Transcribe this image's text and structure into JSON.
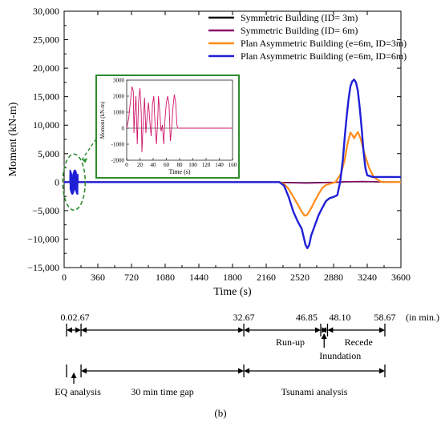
{
  "chart_data": {
    "type": "line",
    "xlabel": "Time (s)",
    "ylabel": "Moment (kN-m)",
    "xlim": [
      0,
      3600
    ],
    "ylim": [
      -15000,
      30000
    ],
    "xticks": [
      0,
      360,
      720,
      1080,
      1440,
      1800,
      2160,
      2520,
      2880,
      3240,
      3600
    ],
    "yticks": [
      -15000,
      -10000,
      -5000,
      0,
      5000,
      10000,
      15000,
      20000,
      25000,
      30000
    ],
    "ytick_labels": [
      "−15,000",
      "−10,000",
      "−5,000",
      "0",
      "5,000",
      "10,000",
      "15,000",
      "20,000",
      "25,000",
      "30,000"
    ],
    "legend_position": "top-right",
    "series": [
      {
        "name": "Symmetric Building (ID= 3m)",
        "color": "#000000",
        "points": [
          [
            0,
            0
          ],
          [
            2000,
            0
          ],
          [
            2300,
            -40
          ],
          [
            2500,
            -90
          ],
          [
            2600,
            -110
          ],
          [
            2700,
            -80
          ],
          [
            2900,
            -20
          ],
          [
            3000,
            50
          ],
          [
            3200,
            80
          ],
          [
            3400,
            30
          ],
          [
            3600,
            20
          ]
        ]
      },
      {
        "name": "Symmetric Building (ID= 6m)",
        "color": "#8b0a6b",
        "points": [
          [
            0,
            0
          ],
          [
            2000,
            0
          ],
          [
            2300,
            -60
          ],
          [
            2500,
            -150
          ],
          [
            2600,
            -180
          ],
          [
            2700,
            -120
          ],
          [
            2900,
            -40
          ],
          [
            3000,
            80
          ],
          [
            3200,
            120
          ],
          [
            3400,
            50
          ],
          [
            3600,
            30
          ]
        ]
      },
      {
        "name": "Plan Asymmetric Building (e=6m, ID=3m)",
        "color": "#ff8c1a",
        "points": [
          [
            0,
            0
          ],
          [
            2300,
            0
          ],
          [
            2350,
            -300
          ],
          [
            2400,
            -1200
          ],
          [
            2450,
            -2600
          ],
          [
            2500,
            -4000
          ],
          [
            2540,
            -5200
          ],
          [
            2570,
            -5900
          ],
          [
            2600,
            -5700
          ],
          [
            2640,
            -4600
          ],
          [
            2680,
            -3300
          ],
          [
            2720,
            -2100
          ],
          [
            2760,
            -1000
          ],
          [
            2800,
            -500
          ],
          [
            2860,
            -200
          ],
          [
            2900,
            0
          ],
          [
            2960,
            1500
          ],
          [
            3000,
            4000
          ],
          [
            3030,
            6800
          ],
          [
            3060,
            8700
          ],
          [
            3080,
            8300
          ],
          [
            3100,
            7700
          ],
          [
            3120,
            8300
          ],
          [
            3140,
            8800
          ],
          [
            3170,
            7600
          ],
          [
            3210,
            5000
          ],
          [
            3260,
            2500
          ],
          [
            3310,
            900
          ],
          [
            3360,
            300
          ],
          [
            3400,
            0
          ],
          [
            3600,
            0
          ]
        ]
      },
      {
        "name": "Plan Asymmetric Building (e=6m, ID=6m)",
        "color": "#1f1fd6",
        "points": [
          [
            0,
            0
          ],
          [
            2300,
            0
          ],
          [
            2350,
            -600
          ],
          [
            2400,
            -2600
          ],
          [
            2450,
            -5200
          ],
          [
            2500,
            -7000
          ],
          [
            2540,
            -8200
          ],
          [
            2560,
            -9600
          ],
          [
            2580,
            -11000
          ],
          [
            2600,
            -11600
          ],
          [
            2620,
            -11000
          ],
          [
            2640,
            -9400
          ],
          [
            2680,
            -7600
          ],
          [
            2720,
            -5800
          ],
          [
            2760,
            -4500
          ],
          [
            2800,
            -3300
          ],
          [
            2840,
            -2800
          ],
          [
            2880,
            -2600
          ],
          [
            2920,
            -2300
          ],
          [
            2950,
            0
          ],
          [
            2980,
            4000
          ],
          [
            3000,
            8000
          ],
          [
            3020,
            11500
          ],
          [
            3040,
            14500
          ],
          [
            3060,
            16800
          ],
          [
            3080,
            17700
          ],
          [
            3100,
            18000
          ],
          [
            3120,
            17500
          ],
          [
            3140,
            16000
          ],
          [
            3160,
            13000
          ],
          [
            3180,
            9500
          ],
          [
            3200,
            5500
          ],
          [
            3220,
            2500
          ],
          [
            3240,
            1200
          ],
          [
            3300,
            900
          ],
          [
            3600,
            900
          ]
        ]
      }
    ],
    "eq_burst": {
      "color": "#1f1fd6",
      "t_start": 60,
      "t_end": 150,
      "amplitude": 2200
    },
    "inset": {
      "xlabel": "Time (s)",
      "ylabel": "Moment (kN-m)",
      "xlim": [
        0,
        160
      ],
      "ylim": [
        -2000,
        3000
      ],
      "xticks": [
        0,
        20,
        40,
        60,
        80,
        100,
        120,
        140,
        160
      ],
      "yticks": [
        -2000,
        -1000,
        0,
        1000,
        2000,
        3000
      ],
      "series_color": "#d0156b",
      "points": [
        [
          0,
          0
        ],
        [
          3,
          600
        ],
        [
          6,
          1800
        ],
        [
          8,
          2600
        ],
        [
          10,
          2300
        ],
        [
          11,
          -300
        ],
        [
          12,
          800
        ],
        [
          14,
          2000
        ],
        [
          16,
          -1000
        ],
        [
          18,
          1700
        ],
        [
          20,
          2500
        ],
        [
          22,
          1000
        ],
        [
          23,
          -1500
        ],
        [
          25,
          400
        ],
        [
          27,
          1900
        ],
        [
          29,
          -300
        ],
        [
          31,
          800
        ],
        [
          33,
          1600
        ],
        [
          35,
          400
        ],
        [
          37,
          -500
        ],
        [
          39,
          1500
        ],
        [
          41,
          2000
        ],
        [
          43,
          100
        ],
        [
          45,
          -1000
        ],
        [
          47,
          600
        ],
        [
          48,
          2000
        ],
        [
          50,
          1000
        ],
        [
          52,
          -200
        ],
        [
          54,
          200
        ],
        [
          56,
          -1000
        ],
        [
          58,
          600
        ],
        [
          60,
          1600
        ],
        [
          62,
          2000
        ],
        [
          64,
          1500
        ],
        [
          66,
          -800
        ],
        [
          68,
          0
        ],
        [
          70,
          1300
        ],
        [
          72,
          2100
        ],
        [
          74,
          1600
        ],
        [
          76,
          200
        ],
        [
          77,
          0
        ],
        [
          80,
          0
        ],
        [
          160,
          0
        ]
      ]
    }
  },
  "timeline": {
    "unit_label": "(in min.)",
    "ticks": [
      {
        "minutes": 0.0,
        "label": "0.0"
      },
      {
        "minutes": 2.67,
        "label": "2.67"
      },
      {
        "minutes": 32.67,
        "label": "32.67"
      },
      {
        "minutes": 46.85,
        "label": "46.85"
      },
      {
        "minutes": 48.1,
        "label": "48.10"
      },
      {
        "minutes": 58.67,
        "label": "58.67"
      }
    ],
    "phases": [
      "Run-up",
      "Inundation",
      "Recede"
    ],
    "bottom_phases": [
      "EQ analysis",
      "30 min time gap",
      "Tsunami analysis"
    ]
  },
  "caption": "(b)"
}
